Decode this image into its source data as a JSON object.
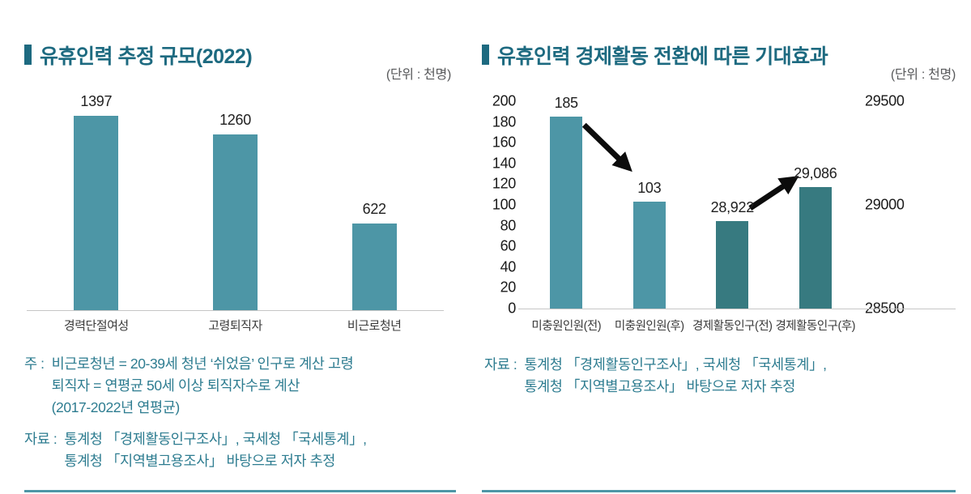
{
  "left_chart": {
    "title": "유휴인력 추정 규모(2022)",
    "unit": "(단위 : 천명)",
    "notes": [
      {
        "label": "주 :",
        "lines": [
          "비근로청년 = 20-39세 청년 ‘쉬었음’ 인구로 계산 고령",
          "퇴직자 = 연평균 50세 이상 퇴직자수로 계산",
          "(2017-2022년 연평균)"
        ]
      },
      {
        "label": "자료 :",
        "lines": [
          "통계청 「경제활동인구조사」, 국세청 「국세통계」,",
          "통계청 「지역별고용조사」 바탕으로 저자 추정"
        ]
      }
    ]
  },
  "right_chart": {
    "title": "유휴인력 경제활동 전환에 따른 기대효과",
    "unit": "(단위 : 천명)",
    "notes": [
      {
        "label": "자료 :",
        "lines": [
          "통계청 「경제활동인구조사」, 국세청 「국세통계」,",
          "통계청 「지역별고용조사」 바탕으로 저자 추정"
        ]
      }
    ]
  },
  "chart_data": [
    {
      "type": "bar",
      "title": "유휴인력 추정 규모(2022)",
      "unit": "천명",
      "categories": [
        "경력단절여성",
        "고령퇴직자",
        "비근로청년"
      ],
      "values": [
        1397,
        1260,
        622
      ],
      "value_labels": [
        "1397",
        "1260",
        "622"
      ],
      "ylim": [
        0,
        1500
      ],
      "bar_color": "#4d96a6",
      "grid": false,
      "legend": false
    },
    {
      "type": "bar",
      "title": "유휴인력 경제활동 전환에 따른 기대효과",
      "unit": "천명",
      "categories": [
        "미충원인원(전)",
        "미충원인원(후)",
        "경제활동인구(전)",
        "경제활동인구(후)"
      ],
      "values": [
        185,
        103,
        28922,
        29086
      ],
      "value_labels": [
        "185",
        "103",
        "28,922",
        "29,086"
      ],
      "bar_axes": [
        "left",
        "left",
        "right",
        "right"
      ],
      "bar_colors": [
        "#4d96a6",
        "#4d96a6",
        "#377a80",
        "#377a80"
      ],
      "left_axis": {
        "range": [
          0,
          200
        ],
        "ticks": [
          0,
          20,
          40,
          60,
          80,
          100,
          120,
          140,
          160,
          180,
          200
        ]
      },
      "right_axis": {
        "range": [
          28500,
          29500
        ],
        "ticks": [
          28500,
          29000,
          29500
        ]
      },
      "annotations": [
        {
          "type": "arrow",
          "direction": "down",
          "from_index": 0,
          "to_index": 1
        },
        {
          "type": "arrow",
          "direction": "up",
          "from_index": 2,
          "to_index": 3
        }
      ],
      "grid": false,
      "legend": false
    }
  ],
  "colors": {
    "title": "#1d6a80",
    "teal_bar": "#4d96a6",
    "dark_teal_bar": "#377a80",
    "note_text": "#2d7c90",
    "unit_text": "#58595b",
    "baseline": "#c6c6c6",
    "footer_rule": "#4d96a6",
    "arrow": "#0c0c0c"
  }
}
